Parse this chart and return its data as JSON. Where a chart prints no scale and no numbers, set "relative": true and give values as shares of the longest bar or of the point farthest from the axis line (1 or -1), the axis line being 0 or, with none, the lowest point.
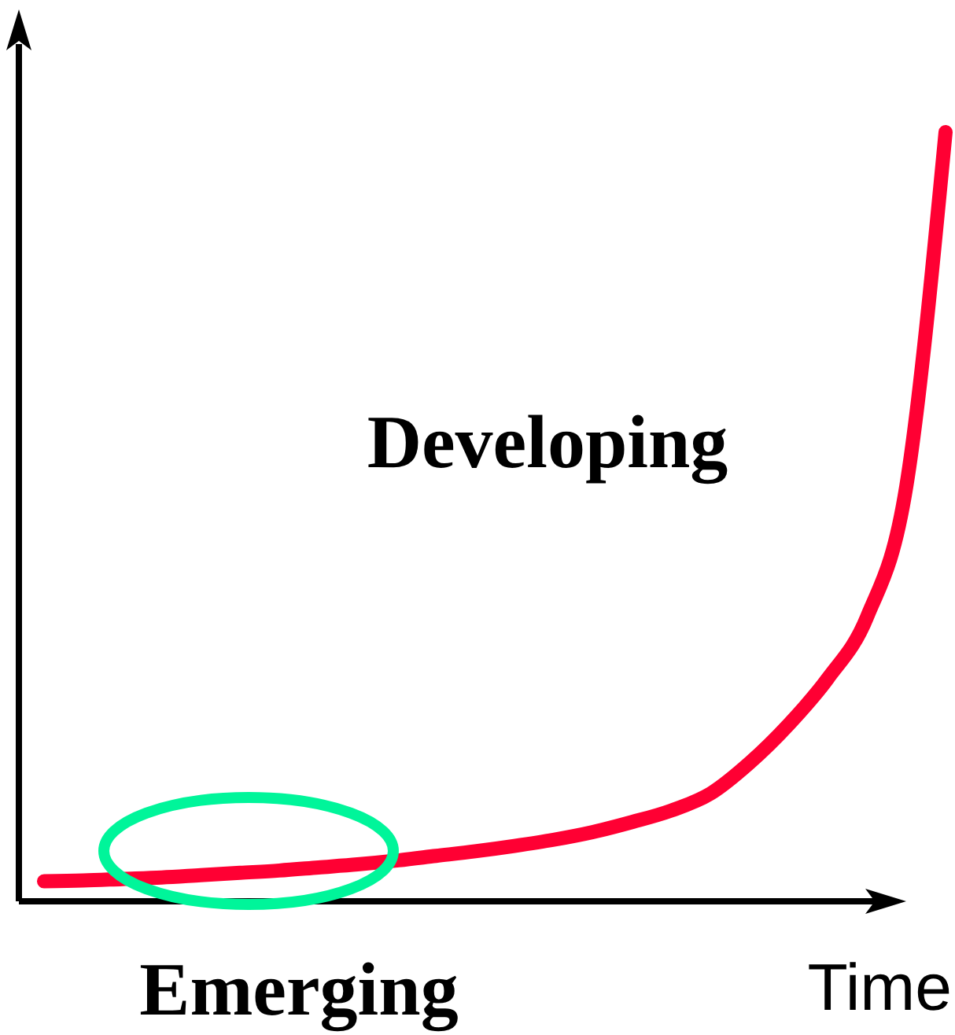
{
  "chart_data": {
    "type": "line",
    "relative": true,
    "xlabel": "Time",
    "annotations": [
      "Developing",
      "Emerging"
    ],
    "categories": [
      null,
      null,
      null,
      null,
      null,
      null,
      null,
      null,
      null,
      null,
      null,
      null,
      null,
      null,
      null,
      null,
      null,
      null,
      null,
      null,
      null,
      null,
      null,
      null
    ],
    "series": [
      {
        "color": "#ff0033",
        "values": [
          0.026,
          0.027,
          0.029,
          0.031,
          0.034,
          0.037,
          0.04,
          0.044,
          0.048,
          0.053,
          0.059,
          0.065,
          0.072,
          0.08,
          0.09,
          0.103,
          0.118,
          0.14,
          0.18,
          0.23,
          0.29,
          0.37,
          0.54,
          1
        ]
      }
    ],
    "marker": "none",
    "line_style": "solid"
  }
}
